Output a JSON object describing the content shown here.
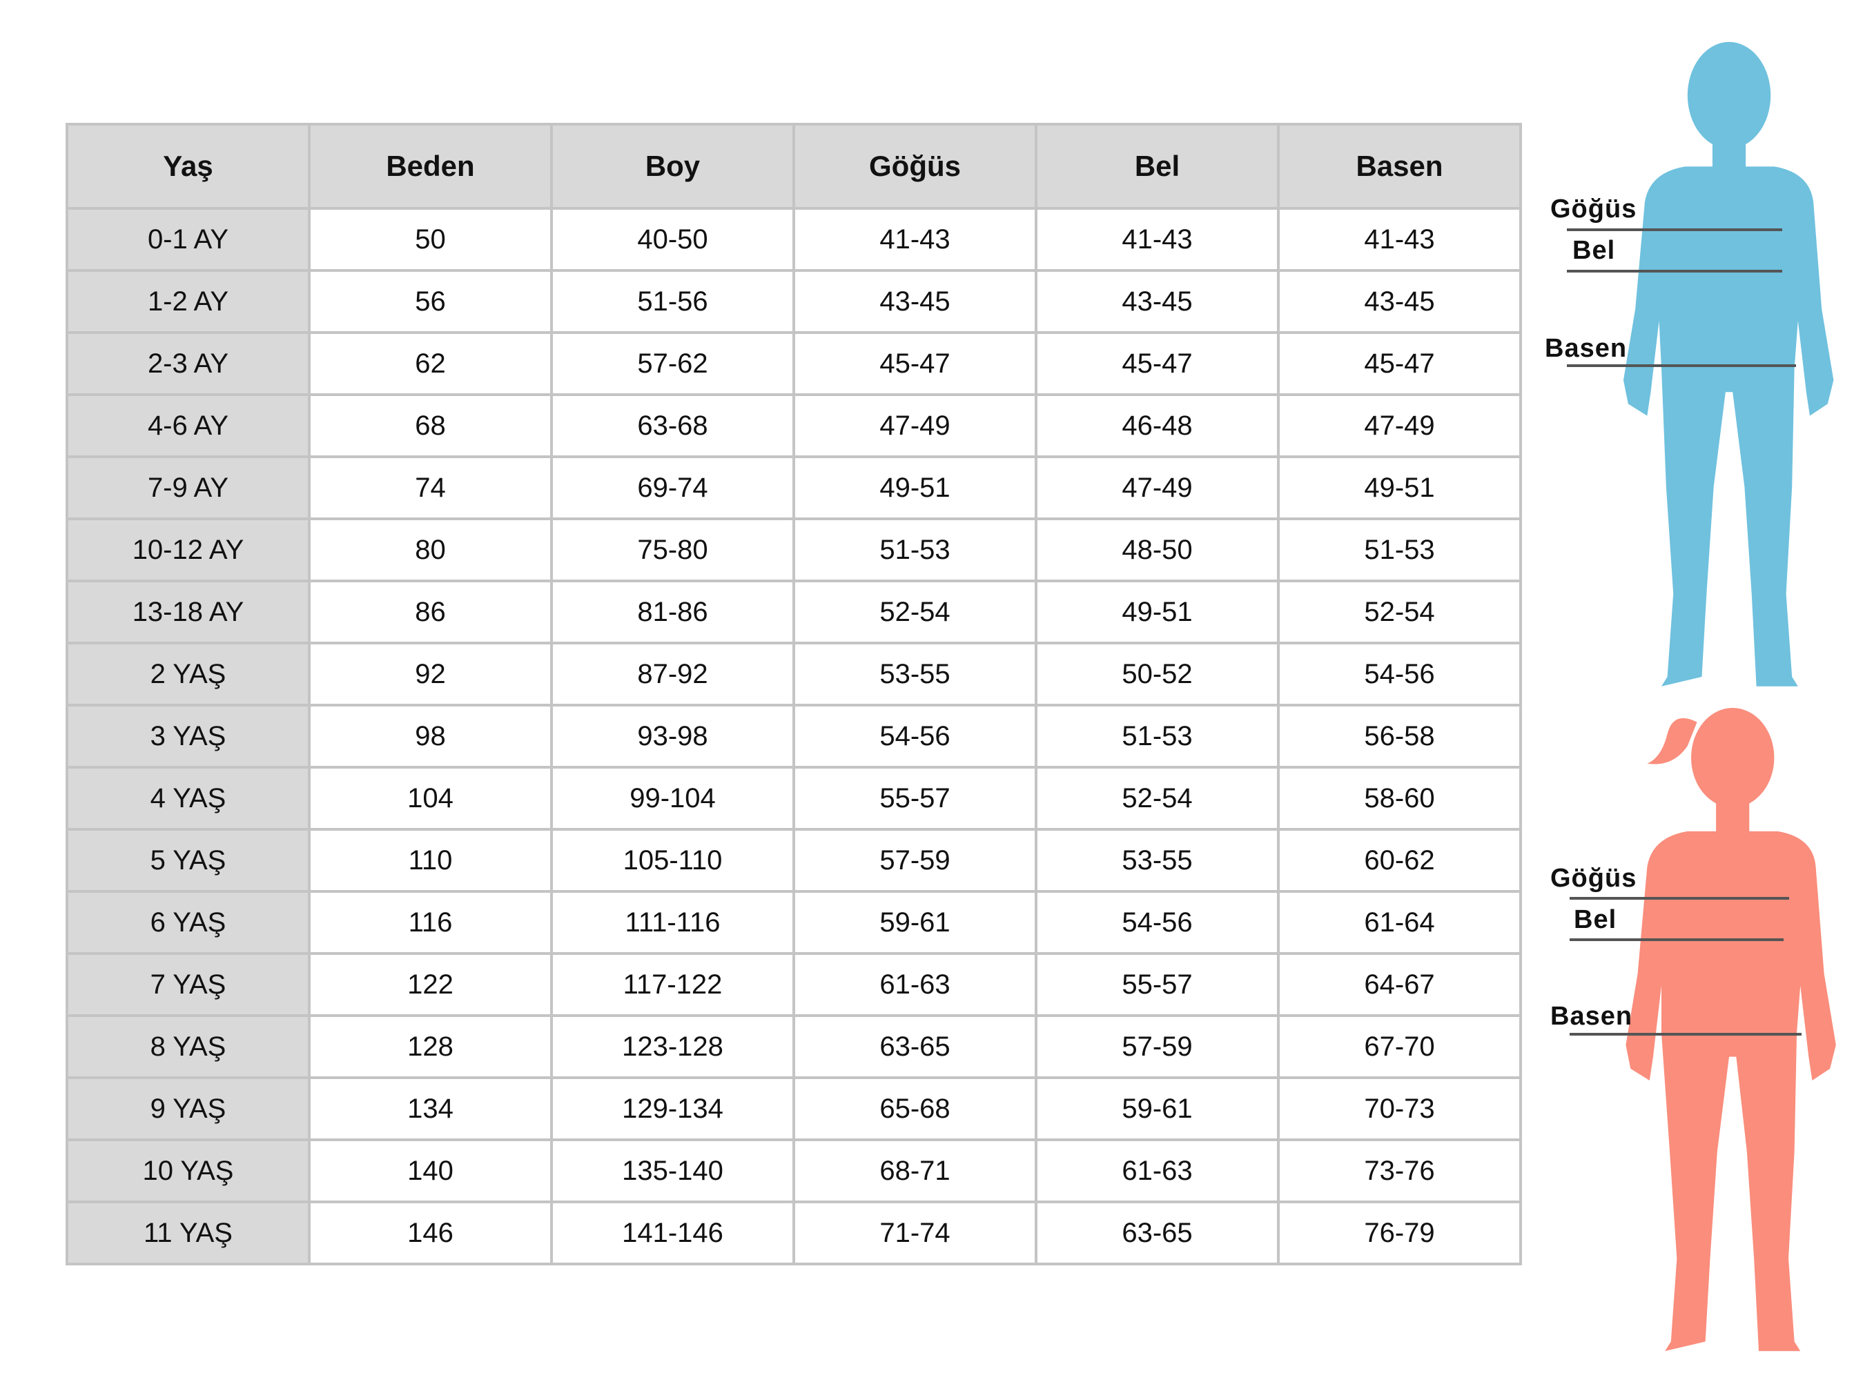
{
  "table": {
    "headers": [
      "Yaş",
      "Beden",
      "Boy",
      "Göğüs",
      "Bel",
      "Basen"
    ],
    "rows": [
      [
        "0-1 AY",
        "50",
        "40-50",
        "41-43",
        "41-43",
        "41-43"
      ],
      [
        "1-2 AY",
        "56",
        "51-56",
        "43-45",
        "43-45",
        "43-45"
      ],
      [
        "2-3 AY",
        "62",
        "57-62",
        "45-47",
        "45-47",
        "45-47"
      ],
      [
        "4-6 AY",
        "68",
        "63-68",
        "47-49",
        "46-48",
        "47-49"
      ],
      [
        "7-9 AY",
        "74",
        "69-74",
        "49-51",
        "47-49",
        "49-51"
      ],
      [
        "10-12 AY",
        "80",
        "75-80",
        "51-53",
        "48-50",
        "51-53"
      ],
      [
        "13-18 AY",
        "86",
        "81-86",
        "52-54",
        "49-51",
        "52-54"
      ],
      [
        "2 YAŞ",
        "92",
        "87-92",
        "53-55",
        "50-52",
        "54-56"
      ],
      [
        "3 YAŞ",
        "98",
        "93-98",
        "54-56",
        "51-53",
        "56-58"
      ],
      [
        "4 YAŞ",
        "104",
        "99-104",
        "55-57",
        "52-54",
        "58-60"
      ],
      [
        "5 YAŞ",
        "110",
        "105-110",
        "57-59",
        "53-55",
        "60-62"
      ],
      [
        "6 YAŞ",
        "116",
        "111-116",
        "59-61",
        "54-56",
        "61-64"
      ],
      [
        "7 YAŞ",
        "122",
        "117-122",
        "61-63",
        "55-57",
        "64-67"
      ],
      [
        "8 YAŞ",
        "128",
        "123-128",
        "63-65",
        "57-59",
        "67-70"
      ],
      [
        "9 YAŞ",
        "134",
        "129-134",
        "65-68",
        "59-61",
        "70-73"
      ],
      [
        "10 YAŞ",
        "140",
        "135-140",
        "68-71",
        "61-63",
        "73-76"
      ],
      [
        "11 YAŞ",
        "146",
        "141-146",
        "71-74",
        "63-65",
        "76-79"
      ]
    ]
  },
  "figures": {
    "boy": {
      "color": "#6fc1de",
      "labels": {
        "chest": "Göğüs",
        "waist": "Bel",
        "hip": "Basen"
      }
    },
    "girl": {
      "color": "#fa8d7c",
      "labels": {
        "chest": "Göğüs",
        "waist": "Bel",
        "hip": "Basen"
      }
    }
  }
}
